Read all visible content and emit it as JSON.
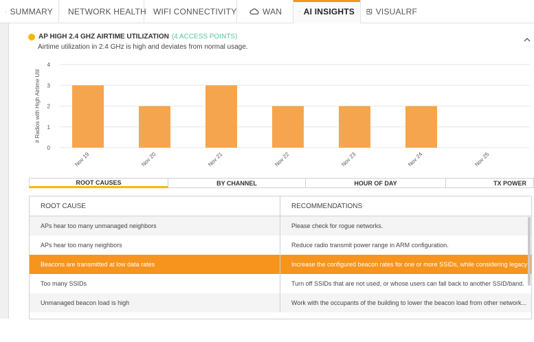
{
  "tabs": [
    {
      "label": "SUMMARY",
      "icon": "list-icon"
    },
    {
      "label": "NETWORK HEALTH",
      "icon": "monitor-icon"
    },
    {
      "label": "WIFI CONNECTIVITY",
      "icon": "device-icon"
    },
    {
      "label": "WAN",
      "icon": "cloud-icon"
    },
    {
      "label": "AI INSIGHTS",
      "icon": "lightbulb-icon",
      "active": true
    },
    {
      "label": "VISUALRF",
      "icon": "floorplan-icon"
    }
  ],
  "insight": {
    "title": "AP HIGH 2.4 GHZ AIRTIME UTILIZATION",
    "count": "(4 ACCESS POINTS)",
    "description": "Airtime utilization in 2.4 GHz is high and deviates from normal usage.",
    "status_color": "#f5b800"
  },
  "chart_data": {
    "type": "bar",
    "categories": [
      "Nov 19",
      "Nov 20",
      "Nov 21",
      "Nov 22",
      "Nov 23",
      "Nov 24",
      "Nov 25"
    ],
    "values": [
      3,
      2,
      3,
      2,
      2,
      2,
      0
    ],
    "ylabel": "# Radios with High Airtime Util",
    "ylim": [
      0,
      4
    ],
    "yticks": [
      "0",
      "1",
      "2",
      "3",
      "4"
    ],
    "bar_color": "#f6a54f",
    "grid": true
  },
  "subtabs": [
    {
      "label": "ROOT CAUSES",
      "active": true
    },
    {
      "label": "BY CHANNEL"
    },
    {
      "label": "HOUR OF DAY"
    },
    {
      "label": "TX POWER"
    }
  ],
  "table": {
    "headers": [
      "ROOT CAUSE",
      "RECOMMENDATIONS"
    ],
    "rows": [
      {
        "cause": "APs hear too many unmanaged neighbors",
        "rec": "Please check for rogue networks."
      },
      {
        "cause": "APs hear too many neighbors",
        "rec": "Reduce radio transmit power range in ARM configuration."
      },
      {
        "cause": "Beacons are transmitted at low data rates",
        "rec": "Increase the configured beacon rates for one or more SSIDs, while considering legacy ...",
        "selected": true
      },
      {
        "cause": "Too many SSIDs",
        "rec": "Turn off SSIDs that are not used, or whose users can fall back to another SSID/band."
      },
      {
        "cause": "Unmanaged beacon load is high",
        "rec": "Work with the occupants of the building to lower the beacon load from other network..."
      }
    ]
  }
}
